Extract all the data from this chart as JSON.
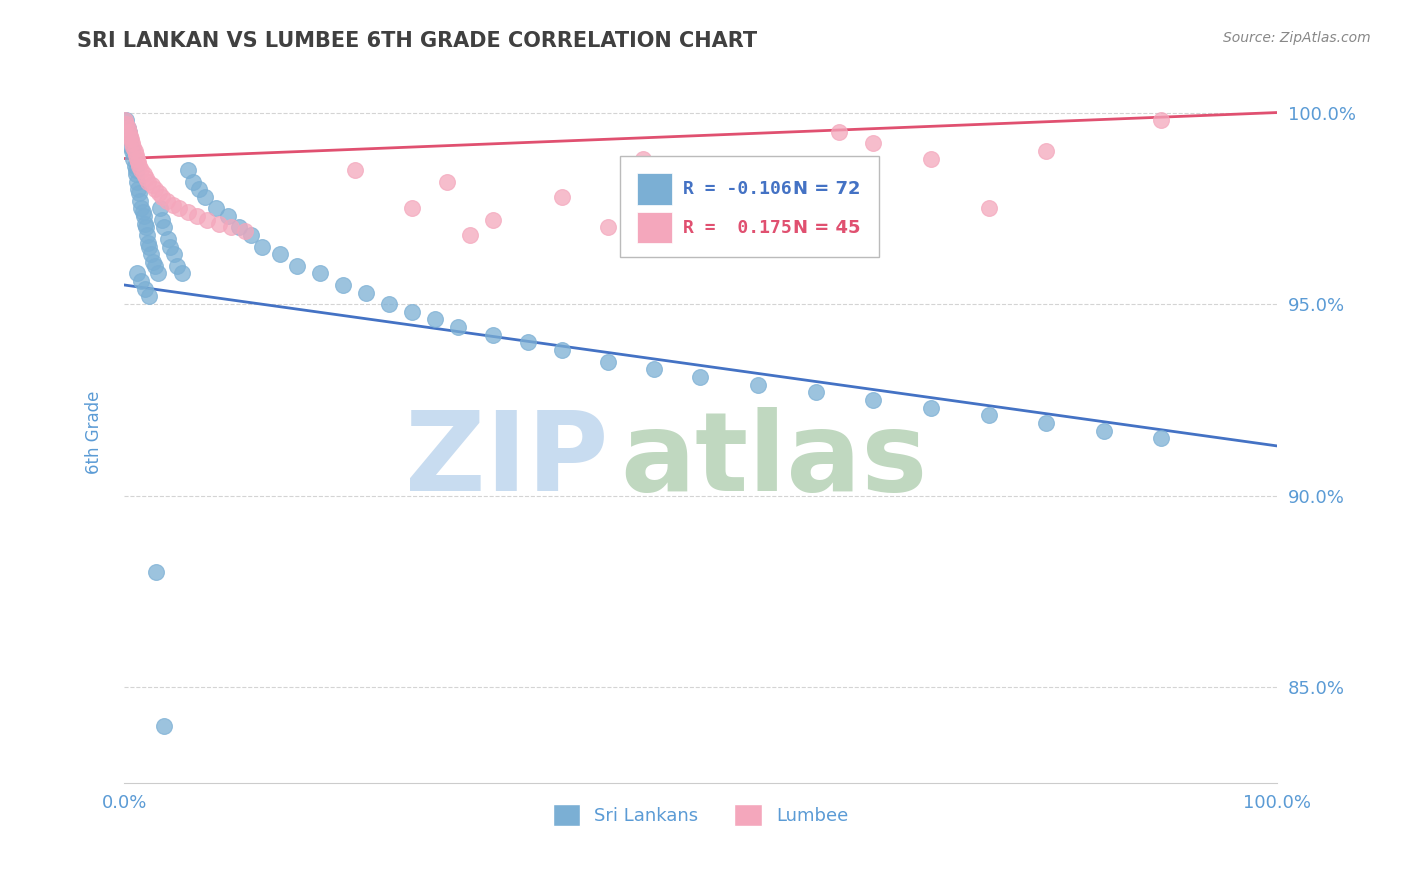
{
  "title": "SRI LANKAN VS LUMBEE 6TH GRADE CORRELATION CHART",
  "source_text": "Source: ZipAtlas.com",
  "ylabel": "6th Grade",
  "ymin": 0.825,
  "ymax": 1.008,
  "xmin": 0.0,
  "xmax": 1.0,
  "yticks": [
    0.85,
    0.9,
    0.95,
    1.0
  ],
  "ytick_labels": [
    "85.0%",
    "90.0%",
    "95.0%",
    "100.0%"
  ],
  "legend_r1": "R = -0.106",
  "legend_n1": "N = 72",
  "legend_r2": "R =  0.175",
  "legend_n2": "N = 45",
  "color_blue": "#7BAFD4",
  "color_pink": "#F4A7BC",
  "color_trend_blue": "#4472C4",
  "color_trend_pink": "#E05070",
  "title_color": "#404040",
  "axis_label_color": "#5B9BD5",
  "grid_color": "#AAAAAA",
  "watermark_zip_color": "#C8DCF0",
  "watermark_atlas_color": "#C0D8C0",
  "sri_lankan_x": [
    0.002,
    0.003,
    0.004,
    0.005,
    0.006,
    0.007,
    0.008,
    0.009,
    0.01,
    0.01,
    0.011,
    0.012,
    0.013,
    0.014,
    0.015,
    0.016,
    0.017,
    0.018,
    0.019,
    0.02,
    0.021,
    0.022,
    0.023,
    0.025,
    0.027,
    0.029,
    0.031,
    0.033,
    0.035,
    0.038,
    0.04,
    0.043,
    0.046,
    0.05,
    0.055,
    0.06,
    0.065,
    0.07,
    0.08,
    0.09,
    0.1,
    0.11,
    0.12,
    0.135,
    0.15,
    0.17,
    0.19,
    0.21,
    0.23,
    0.25,
    0.27,
    0.29,
    0.32,
    0.35,
    0.38,
    0.42,
    0.46,
    0.5,
    0.55,
    0.6,
    0.65,
    0.7,
    0.75,
    0.8,
    0.85,
    0.9,
    0.011,
    0.015,
    0.018,
    0.022,
    0.028,
    0.035
  ],
  "sri_lankan_y": [
    0.998,
    0.996,
    0.995,
    0.993,
    0.991,
    0.99,
    0.988,
    0.986,
    0.985,
    0.984,
    0.982,
    0.98,
    0.979,
    0.977,
    0.975,
    0.974,
    0.973,
    0.971,
    0.97,
    0.968,
    0.966,
    0.965,
    0.963,
    0.961,
    0.96,
    0.958,
    0.975,
    0.972,
    0.97,
    0.967,
    0.965,
    0.963,
    0.96,
    0.958,
    0.985,
    0.982,
    0.98,
    0.978,
    0.975,
    0.973,
    0.97,
    0.968,
    0.965,
    0.963,
    0.96,
    0.958,
    0.955,
    0.953,
    0.95,
    0.948,
    0.946,
    0.944,
    0.942,
    0.94,
    0.938,
    0.935,
    0.933,
    0.931,
    0.929,
    0.927,
    0.925,
    0.923,
    0.921,
    0.919,
    0.917,
    0.915,
    0.958,
    0.956,
    0.954,
    0.952,
    0.88,
    0.84
  ],
  "lumbee_x": [
    0.001,
    0.002,
    0.003,
    0.004,
    0.005,
    0.006,
    0.007,
    0.008,
    0.009,
    0.01,
    0.011,
    0.012,
    0.013,
    0.015,
    0.017,
    0.019,
    0.021,
    0.024,
    0.027,
    0.03,
    0.033,
    0.037,
    0.042,
    0.048,
    0.055,
    0.063,
    0.072,
    0.082,
    0.093,
    0.105,
    0.2,
    0.25,
    0.28,
    0.3,
    0.32,
    0.38,
    0.42,
    0.45,
    0.5,
    0.62,
    0.65,
    0.7,
    0.75,
    0.8,
    0.9
  ],
  "lumbee_y": [
    0.998,
    0.997,
    0.996,
    0.995,
    0.994,
    0.993,
    0.992,
    0.991,
    0.99,
    0.989,
    0.988,
    0.987,
    0.986,
    0.985,
    0.984,
    0.983,
    0.982,
    0.981,
    0.98,
    0.979,
    0.978,
    0.977,
    0.976,
    0.975,
    0.974,
    0.973,
    0.972,
    0.971,
    0.97,
    0.969,
    0.985,
    0.975,
    0.982,
    0.968,
    0.972,
    0.978,
    0.97,
    0.988,
    0.975,
    0.995,
    0.992,
    0.988,
    0.975,
    0.99,
    0.998
  ],
  "blue_trend_y0": 0.955,
  "blue_trend_y1": 0.913,
  "pink_trend_y0": 0.988,
  "pink_trend_y1": 1.0
}
